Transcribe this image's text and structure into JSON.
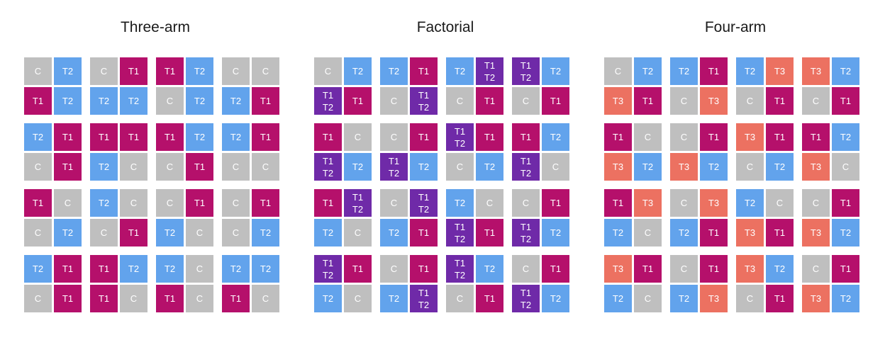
{
  "colors": {
    "C": "#bfbfbf",
    "T1": "#b5106b",
    "T2": "#62a3ec",
    "T3": "#ec7161",
    "T1T2": "#6f2aa8"
  },
  "panels": [
    {
      "title": "Three-arm",
      "rows": [
        [
          "C",
          "T2",
          "C",
          "T1",
          "T1",
          "T2",
          "C",
          "C"
        ],
        [
          "T1",
          "T2",
          "T2",
          "T2",
          "C",
          "T2",
          "T2",
          "T1"
        ],
        [
          "T2",
          "T1",
          "T1",
          "T1",
          "T1",
          "T2",
          "T2",
          "T1"
        ],
        [
          "C",
          "T1",
          "T2",
          "C",
          "C",
          "T1",
          "C",
          "C"
        ],
        [
          "T1",
          "C",
          "T2",
          "C",
          "C",
          "T1",
          "C",
          "T1"
        ],
        [
          "C",
          "T2",
          "C",
          "T1",
          "T2",
          "C",
          "C",
          "T2"
        ],
        [
          "T2",
          "T1",
          "T1",
          "T2",
          "T2",
          "C",
          "T2",
          "T2"
        ],
        [
          "C",
          "T1",
          "T1",
          "C",
          "T1",
          "C",
          "T1",
          "C"
        ]
      ]
    },
    {
      "title": "Factorial",
      "rows": [
        [
          "C",
          "T2",
          "T2",
          "T1",
          "T2",
          "T1T2",
          "T1T2",
          "T2"
        ],
        [
          "T1T2",
          "T1",
          "C",
          "T1T2",
          "C",
          "T1",
          "C",
          "T1"
        ],
        [
          "T1",
          "C",
          "C",
          "T1",
          "T1T2",
          "T1",
          "T1",
          "T2"
        ],
        [
          "T1T2",
          "T2",
          "T1T2",
          "T2",
          "C",
          "T2",
          "T1T2",
          "C"
        ],
        [
          "T1",
          "T1T2",
          "C",
          "T1T2",
          "T2",
          "C",
          "C",
          "T1"
        ],
        [
          "T2",
          "C",
          "T2",
          "T1",
          "T1T2",
          "T1",
          "T1T2",
          "T2"
        ],
        [
          "T1T2",
          "T1",
          "C",
          "T1",
          "T1T2",
          "T2",
          "C",
          "T1"
        ],
        [
          "T2",
          "C",
          "T2",
          "T1T2",
          "C",
          "T1",
          "T1T2",
          "T2"
        ]
      ]
    },
    {
      "title": "Four-arm",
      "rows": [
        [
          "C",
          "T2",
          "T2",
          "T1",
          "T2",
          "T3",
          "T3",
          "T2"
        ],
        [
          "T3",
          "T1",
          "C",
          "T3",
          "C",
          "T1",
          "C",
          "T1"
        ],
        [
          "T1",
          "C",
          "C",
          "T1",
          "T3",
          "T1",
          "T1",
          "T2"
        ],
        [
          "T3",
          "T2",
          "T3",
          "T2",
          "C",
          "T2",
          "T3",
          "C"
        ],
        [
          "T1",
          "T3",
          "C",
          "T3",
          "T2",
          "C",
          "C",
          "T1"
        ],
        [
          "T2",
          "C",
          "T2",
          "T1",
          "T3",
          "T1",
          "T3",
          "T2"
        ],
        [
          "T3",
          "T1",
          "C",
          "T1",
          "T3",
          "T2",
          "C",
          "T1"
        ],
        [
          "T2",
          "C",
          "T2",
          "T3",
          "C",
          "T1",
          "T3",
          "T2"
        ]
      ]
    }
  ],
  "labels": {
    "C": "C",
    "T1": "T1",
    "T2": "T2",
    "T3": "T3",
    "T1T2": "T1\nT2"
  }
}
